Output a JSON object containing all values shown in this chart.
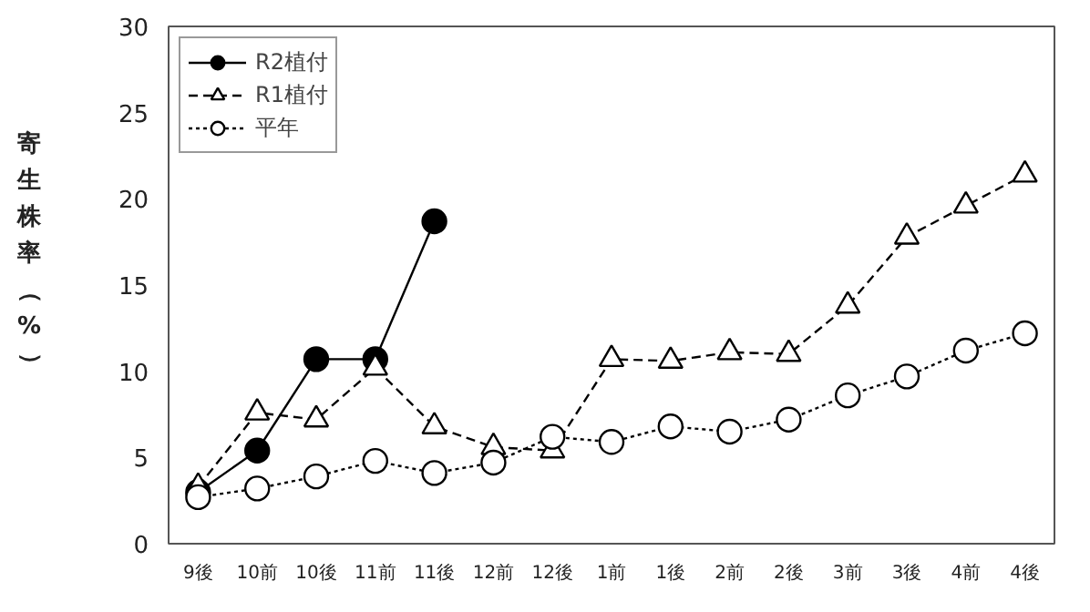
{
  "chart_data": {
    "type": "line",
    "ylabel": "寄生株率（%）",
    "categories": [
      "9後",
      "10前",
      "10後",
      "11前",
      "11後",
      "12前",
      "12後",
      "1前",
      "1後",
      "2前",
      "2後",
      "3前",
      "3後",
      "4前",
      "4後"
    ],
    "series": [
      {
        "name": "R2植付",
        "color": "#000000",
        "marker": "circle",
        "line_style": "solid",
        "values": [
          3.0,
          5.4,
          10.7,
          10.7,
          18.7,
          null,
          null,
          null,
          null,
          null,
          null,
          null,
          null,
          null,
          null
        ]
      },
      {
        "name": "R1植付",
        "color": "#000000",
        "marker": "triangle",
        "line_style": "dashed",
        "values": [
          3.3,
          7.6,
          7.2,
          10.2,
          6.8,
          5.6,
          5.4,
          10.7,
          10.6,
          11.1,
          11.0,
          13.8,
          17.8,
          19.6,
          21.4
        ]
      },
      {
        "name": "平年",
        "color": "#000000",
        "marker": "circle",
        "line_style": "dotted",
        "values": [
          2.7,
          3.2,
          3.9,
          4.8,
          4.1,
          4.7,
          6.2,
          5.9,
          6.8,
          6.5,
          7.2,
          8.6,
          9.7,
          11.2,
          12.2
        ]
      }
    ],
    "ylim": [
      0,
      30
    ],
    "yticks": [
      0,
      5,
      10,
      15,
      20,
      25,
      30
    ],
    "grid": false,
    "legend": "top left"
  }
}
